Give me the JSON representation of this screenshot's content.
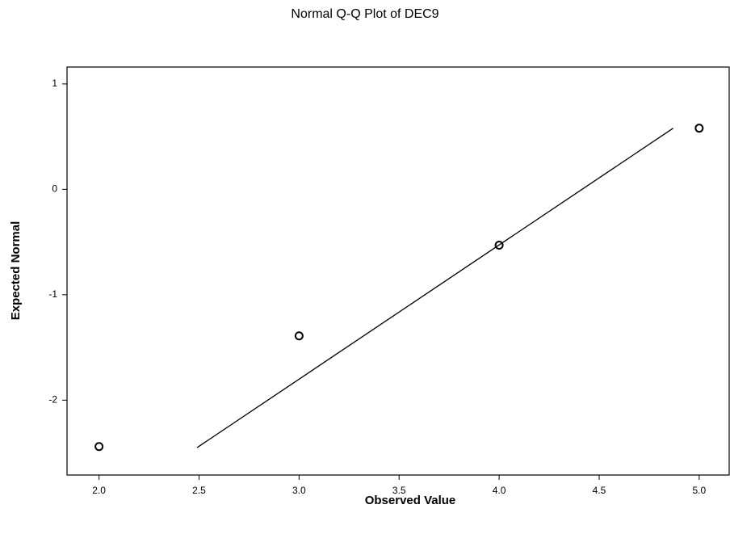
{
  "chart_data": {
    "type": "scatter",
    "title": "Normal Q-Q Plot of DEC9",
    "x_label": "Observed Value",
    "y_label": "Expected Normal",
    "series": [
      {
        "type": "scatter",
        "color": "#000000",
        "x": [
          2.0,
          3.0,
          4.0,
          5.0
        ],
        "values": [
          -2.44,
          -1.39,
          -0.53,
          0.58
        ]
      },
      {
        "type": "line",
        "color": "#000000",
        "x": [
          2.49,
          4.87
        ],
        "values": [
          -2.45,
          0.58
        ]
      }
    ],
    "xlim": [
      1.84,
      5.15
    ],
    "ylim": [
      -2.71,
      1.16
    ],
    "xticks": [
      {
        "value": 2,
        "label": "2.0"
      },
      {
        "value": 2.5,
        "label": "2.5"
      },
      {
        "value": 3,
        "label": "3.0"
      },
      {
        "value": 3.5,
        "label": "3.5"
      },
      {
        "value": 4,
        "label": "4.0"
      },
      {
        "value": 4.5,
        "label": "4.5"
      },
      {
        "value": 5,
        "label": "5.0"
      }
    ],
    "yticks": [
      1,
      0,
      -1,
      -2
    ]
  }
}
